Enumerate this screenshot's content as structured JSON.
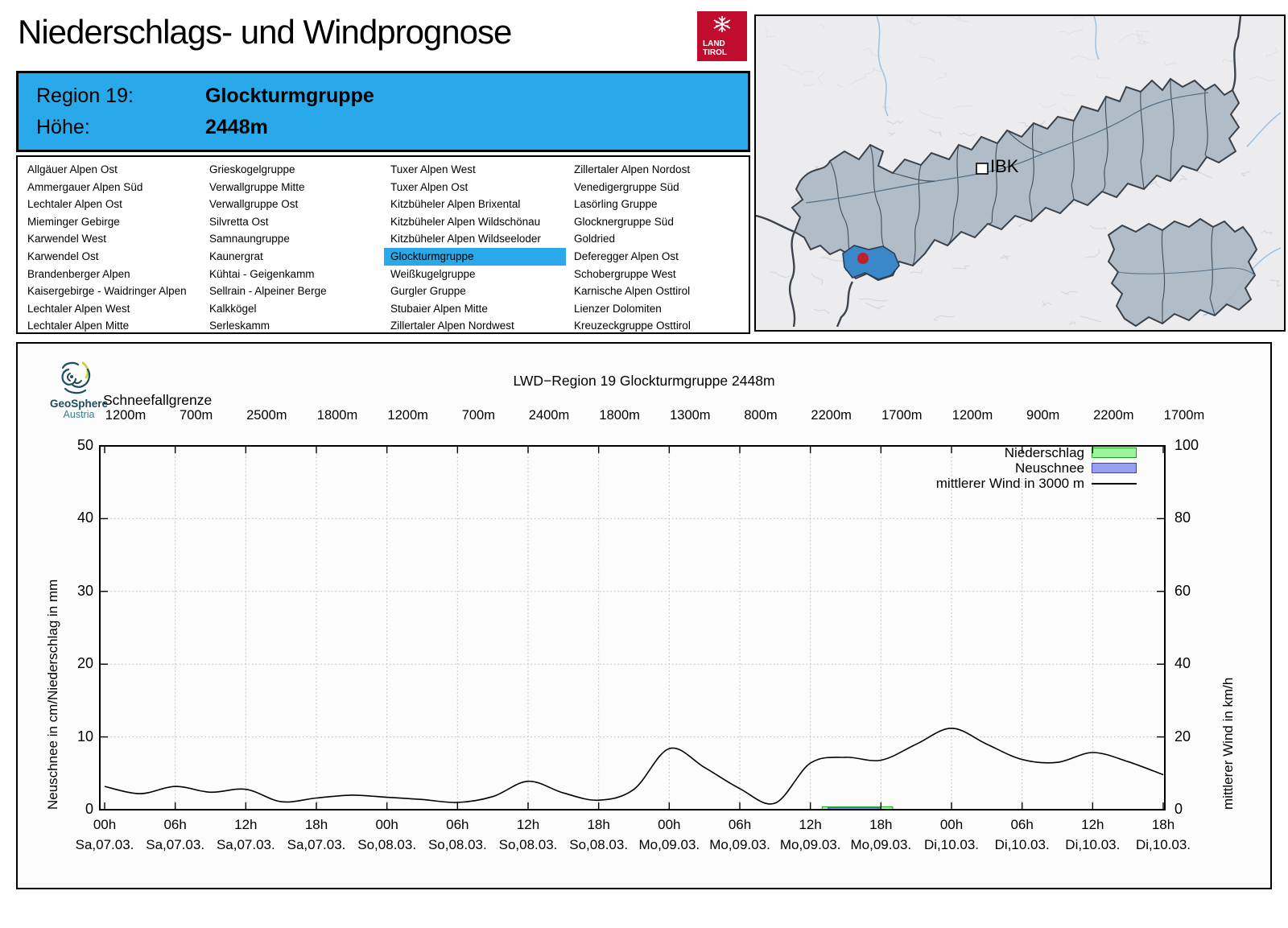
{
  "page": {
    "title": "Niederschlags- und Windprognose"
  },
  "logo": {
    "line1": "LAND",
    "line2": "TIROL",
    "color": "#c00d2e"
  },
  "geosphere": {
    "line1": "GeoSphere",
    "line2": "Austria"
  },
  "region_header": {
    "region_label": "Region 19:",
    "region_value": "Glockturmgruppe",
    "altitude_label": "Höhe:",
    "altitude_value": "2448m",
    "bg_color": "#29a9ea"
  },
  "region_list": {
    "selected": "Glockturmgruppe",
    "highlight_color": "#29a9ea",
    "columns": [
      [
        "Allgäuer Alpen Ost",
        "Ammergauer Alpen Süd",
        "Lechtaler Alpen Ost",
        "Mieminger Gebirge",
        "Karwendel West",
        "Karwendel Ost",
        "Brandenberger Alpen",
        "Kaisergebirge - Waidringer Alpen",
        "Lechtaler Alpen West",
        "Lechtaler Alpen Mitte"
      ],
      [
        "Grieskogelgruppe",
        "Verwallgruppe Mitte",
        "Verwallgruppe Ost",
        "Silvretta Ost",
        "Samnaungruppe",
        "Kaunergrat",
        "Kühtai - Geigenkamm",
        "Sellrain - Alpeiner Berge",
        "Kalkkögel",
        "Serleskamm"
      ],
      [
        "Tuxer Alpen West",
        "Tuxer Alpen Ost",
        "Kitzbüheler Alpen Brixental",
        "Kitzbüheler Alpen Wildschönau",
        "Kitzbüheler Alpen Wildseeloder",
        "Glockturmgruppe",
        "Weißkugelgruppe",
        "Gurgler Gruppe",
        "Stubaier Alpen Mitte",
        "Zillertaler Alpen Nordwest"
      ],
      [
        "Zillertaler Alpen Nordost",
        "Venedigergruppe Süd",
        "Lasörling Gruppe",
        "Glocknergruppe Süd",
        "Goldried",
        "Deferegger Alpen Ost",
        "Schobergruppe West",
        "Karnische Alpen Osttirol",
        "Lienzer Dolomiten",
        "Kreuzeckgruppe Osttirol"
      ]
    ]
  },
  "map": {
    "ibk_label": "IBK",
    "region_fill": "#aab7c4",
    "border_color": "#39414b",
    "highlight_fill": "#3a87c9",
    "marker_color": "#c02128"
  },
  "chart": {
    "title": "LWD−Region 19 Glockturmgruppe 2448m",
    "snowline_label": "Schneefallgrenze",
    "y_left_label": "Neuschnee in cm/Niederschlag in mm",
    "y_right_label": "mittlerer Wind in km/h",
    "legend": [
      {
        "label": "Niederschlag",
        "type": "box",
        "fill": "#9cf59c",
        "border": "#17a017"
      },
      {
        "label": "Neuschnee",
        "type": "box",
        "fill": "#97a0f2",
        "border": "#3a3ad0"
      },
      {
        "label": "mittlerer Wind in 3000 m",
        "type": "line",
        "fill": "#000000"
      }
    ]
  },
  "chart_data": {
    "type": "line",
    "title": "LWD−Region 19 Glockturmgruppe 2448m",
    "grid": true,
    "snowline_values_m": [
      "1200m",
      "700m",
      "2500m",
      "1800m",
      "1200m",
      "700m",
      "2400m",
      "1800m",
      "1300m",
      "800m",
      "2200m",
      "1700m",
      "1200m",
      "900m",
      "2200m",
      "1700m"
    ],
    "x_tick_hours": [
      0,
      6,
      12,
      18,
      24,
      30,
      36,
      42,
      48,
      54,
      60,
      66,
      72,
      78,
      84,
      90
    ],
    "x_tick_labels_time": [
      "00h",
      "06h",
      "12h",
      "18h",
      "00h",
      "06h",
      "12h",
      "18h",
      "00h",
      "06h",
      "12h",
      "18h",
      "00h",
      "06h",
      "12h",
      "18h"
    ],
    "x_tick_labels_date": [
      "Sa,07.03.",
      "Sa,07.03.",
      "Sa,07.03.",
      "Sa,07.03.",
      "So,08.03.",
      "So,08.03.",
      "So,08.03.",
      "So,08.03.",
      "Mo,09.03.",
      "Mo,09.03.",
      "Mo,09.03.",
      "Mo,09.03.",
      "Di,10.03.",
      "Di,10.03.",
      "Di,10.03.",
      "Di,10.03."
    ],
    "y_left": {
      "label": "Neuschnee in cm/Niederschlag in mm",
      "min": 0,
      "max": 50,
      "ticks": [
        0,
        10,
        20,
        30,
        40,
        50
      ]
    },
    "y_right": {
      "label": "mittlerer Wind in km/h",
      "min": 0,
      "max": 100,
      "ticks": [
        0,
        20,
        40,
        60,
        80,
        100
      ]
    },
    "series": [
      {
        "name": "mittlerer Wind in 3000 m",
        "axis": "right",
        "unit": "km/h",
        "x_hours": [
          0,
          3,
          6,
          9,
          12,
          15,
          18,
          21,
          24,
          27,
          30,
          33,
          36,
          39,
          42,
          45,
          48,
          51,
          54,
          57,
          60,
          63,
          66,
          69,
          72,
          75,
          78,
          81,
          84,
          87,
          90
        ],
        "values": [
          6.4,
          4.4,
          6.4,
          4.8,
          5.6,
          2.2,
          3.2,
          4.0,
          3.4,
          2.8,
          2.0,
          3.6,
          7.8,
          4.6,
          2.6,
          5.6,
          16.8,
          11.6,
          5.8,
          1.8,
          12.8,
          14.4,
          13.6,
          18.0,
          22.4,
          18.0,
          13.8,
          13.0,
          15.7,
          13.2,
          9.6
        ]
      },
      {
        "name": "Niederschlag",
        "axis": "left",
        "unit": "mm",
        "bars": [
          {
            "start_h": 61,
            "end_h": 67,
            "value": 0.4
          }
        ]
      },
      {
        "name": "Neuschnee",
        "axis": "left",
        "unit": "cm",
        "bars": [
          {
            "start_h": 61.5,
            "end_h": 66,
            "value": 0.25
          }
        ]
      }
    ]
  }
}
